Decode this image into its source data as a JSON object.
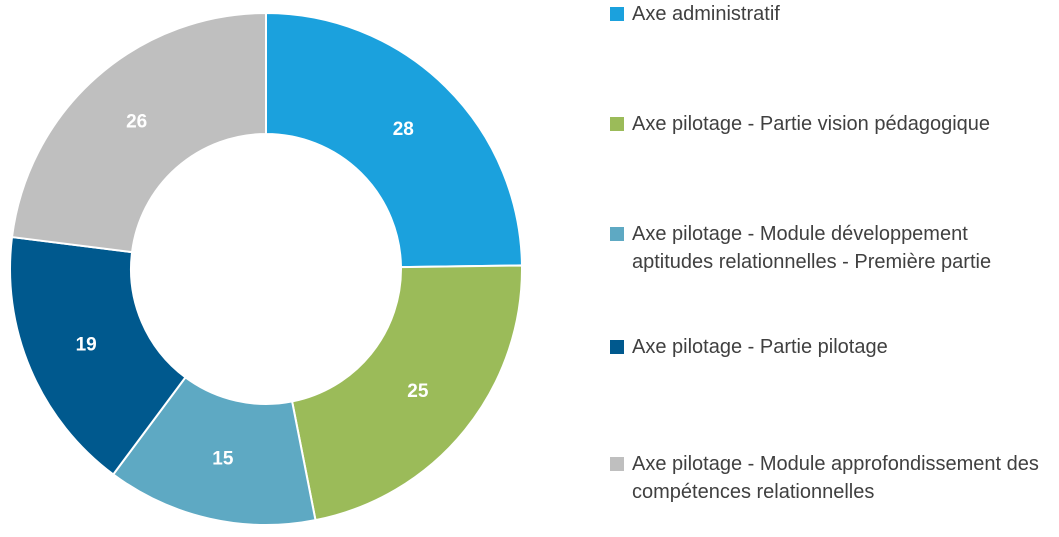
{
  "chart_data": {
    "type": "donut",
    "categories": [
      "Axe administratif",
      "Axe pilotage - Partie vision pédagogique",
      "Axe pilotage - Module développement aptitudes relationnelles - Première partie",
      "Axe pilotage - Partie pilotage",
      "Axe pilotage - Module approfondissement des compétences relationnelles"
    ],
    "values": [
      28,
      25,
      15,
      19,
      26
    ],
    "colors": [
      "#1ba1dd",
      "#9bbb59",
      "#5ea9c3",
      "#00598e",
      "#bfbfbf"
    ],
    "legend": "right"
  }
}
